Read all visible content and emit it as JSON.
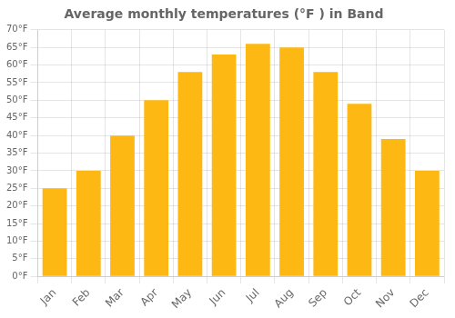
{
  "chart_data": {
    "type": "bar",
    "title": "Average monthly temperatures (°F ) in Band",
    "categories": [
      "Jan",
      "Feb",
      "Mar",
      "Apr",
      "May",
      "Jun",
      "Jul",
      "Aug",
      "Sep",
      "Oct",
      "Nov",
      "Dec"
    ],
    "values": [
      25,
      30,
      40,
      50,
      58,
      63,
      66,
      65,
      58,
      49,
      39,
      30
    ],
    "color": "#FDB813",
    "ylim": [
      0,
      70
    ],
    "yticks": [
      {
        "value": 0,
        "label": "0°F"
      },
      {
        "value": 5,
        "label": "5°F"
      },
      {
        "value": 10,
        "label": "10°F"
      },
      {
        "value": 15,
        "label": "15°F"
      },
      {
        "value": 20,
        "label": "20°F"
      },
      {
        "value": 25,
        "label": "25°F"
      },
      {
        "value": 30,
        "label": "30°F"
      },
      {
        "value": 35,
        "label": "35°F"
      },
      {
        "value": 40,
        "label": "40°F"
      },
      {
        "value": 45,
        "label": "45°F"
      },
      {
        "value": 50,
        "label": "50°F"
      },
      {
        "value": 55,
        "label": "55°F"
      },
      {
        "value": 60,
        "label": "60°F"
      },
      {
        "value": 65,
        "label": "65°F"
      },
      {
        "value": 70,
        "label": "70°F"
      }
    ],
    "grid": true
  }
}
